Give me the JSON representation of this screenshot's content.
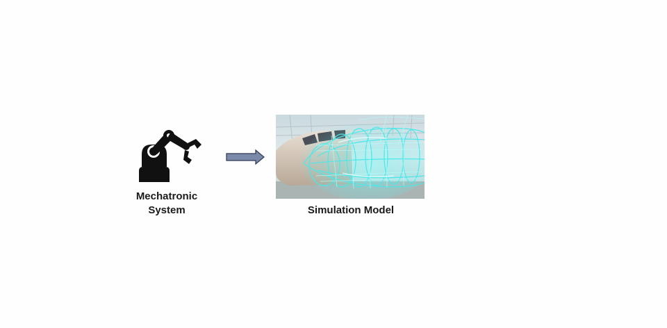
{
  "left_node": {
    "icon": "robot-arm-icon",
    "label_line1": "Mechatronic",
    "label_line2": "System"
  },
  "connector": {
    "icon": "arrow-right-icon",
    "fill": "#7b8aa8",
    "stroke": "#2e3a55"
  },
  "right_node": {
    "image": "aircraft-wireframe-image",
    "label": "Simulation Model"
  },
  "colors": {
    "background": "#fefefe",
    "text": "#1a1a1a",
    "icon": "#111111",
    "wireframe": "#4ee7e9"
  }
}
